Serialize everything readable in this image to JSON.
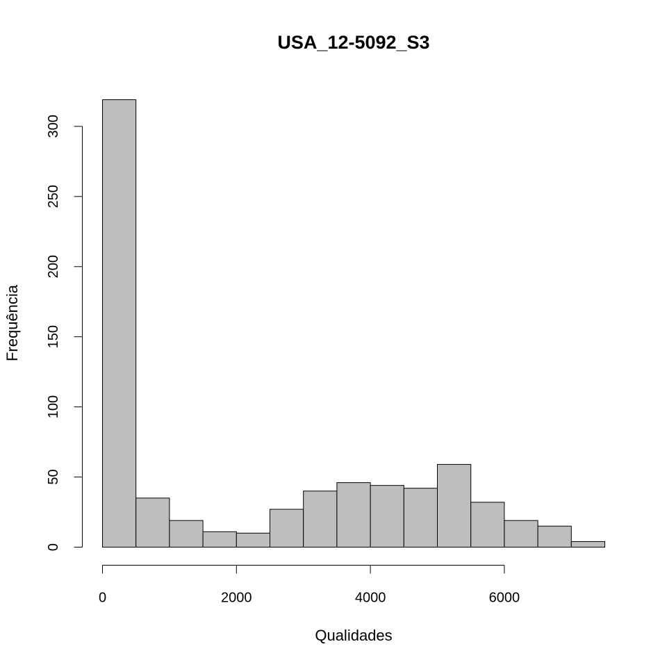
{
  "chart_data": {
    "type": "bar",
    "title": "USA_12-5092_S3",
    "xlabel": "Qualidades",
    "ylabel": "Frequência",
    "bin_edges": [
      0,
      500,
      1000,
      1500,
      2000,
      2500,
      3000,
      3500,
      4000,
      4500,
      5000,
      5500,
      6000,
      6500,
      7000,
      7500
    ],
    "values": [
      319,
      35,
      19,
      11,
      10,
      27,
      40,
      46,
      44,
      42,
      59,
      32,
      19,
      15,
      4
    ],
    "xlim": [
      0,
      7500
    ],
    "ylim": [
      0,
      319
    ],
    "x_ticks": [
      0,
      2000,
      4000,
      6000
    ],
    "x_tick_labels": [
      "0",
      "2000",
      "4000",
      "6000"
    ],
    "y_ticks": [
      0,
      50,
      100,
      150,
      200,
      250,
      300
    ],
    "y_tick_labels": [
      "0",
      "50",
      "100",
      "150",
      "200",
      "250",
      "300"
    ],
    "bar_color": "#bebebe",
    "grid": false,
    "legend": "none"
  }
}
